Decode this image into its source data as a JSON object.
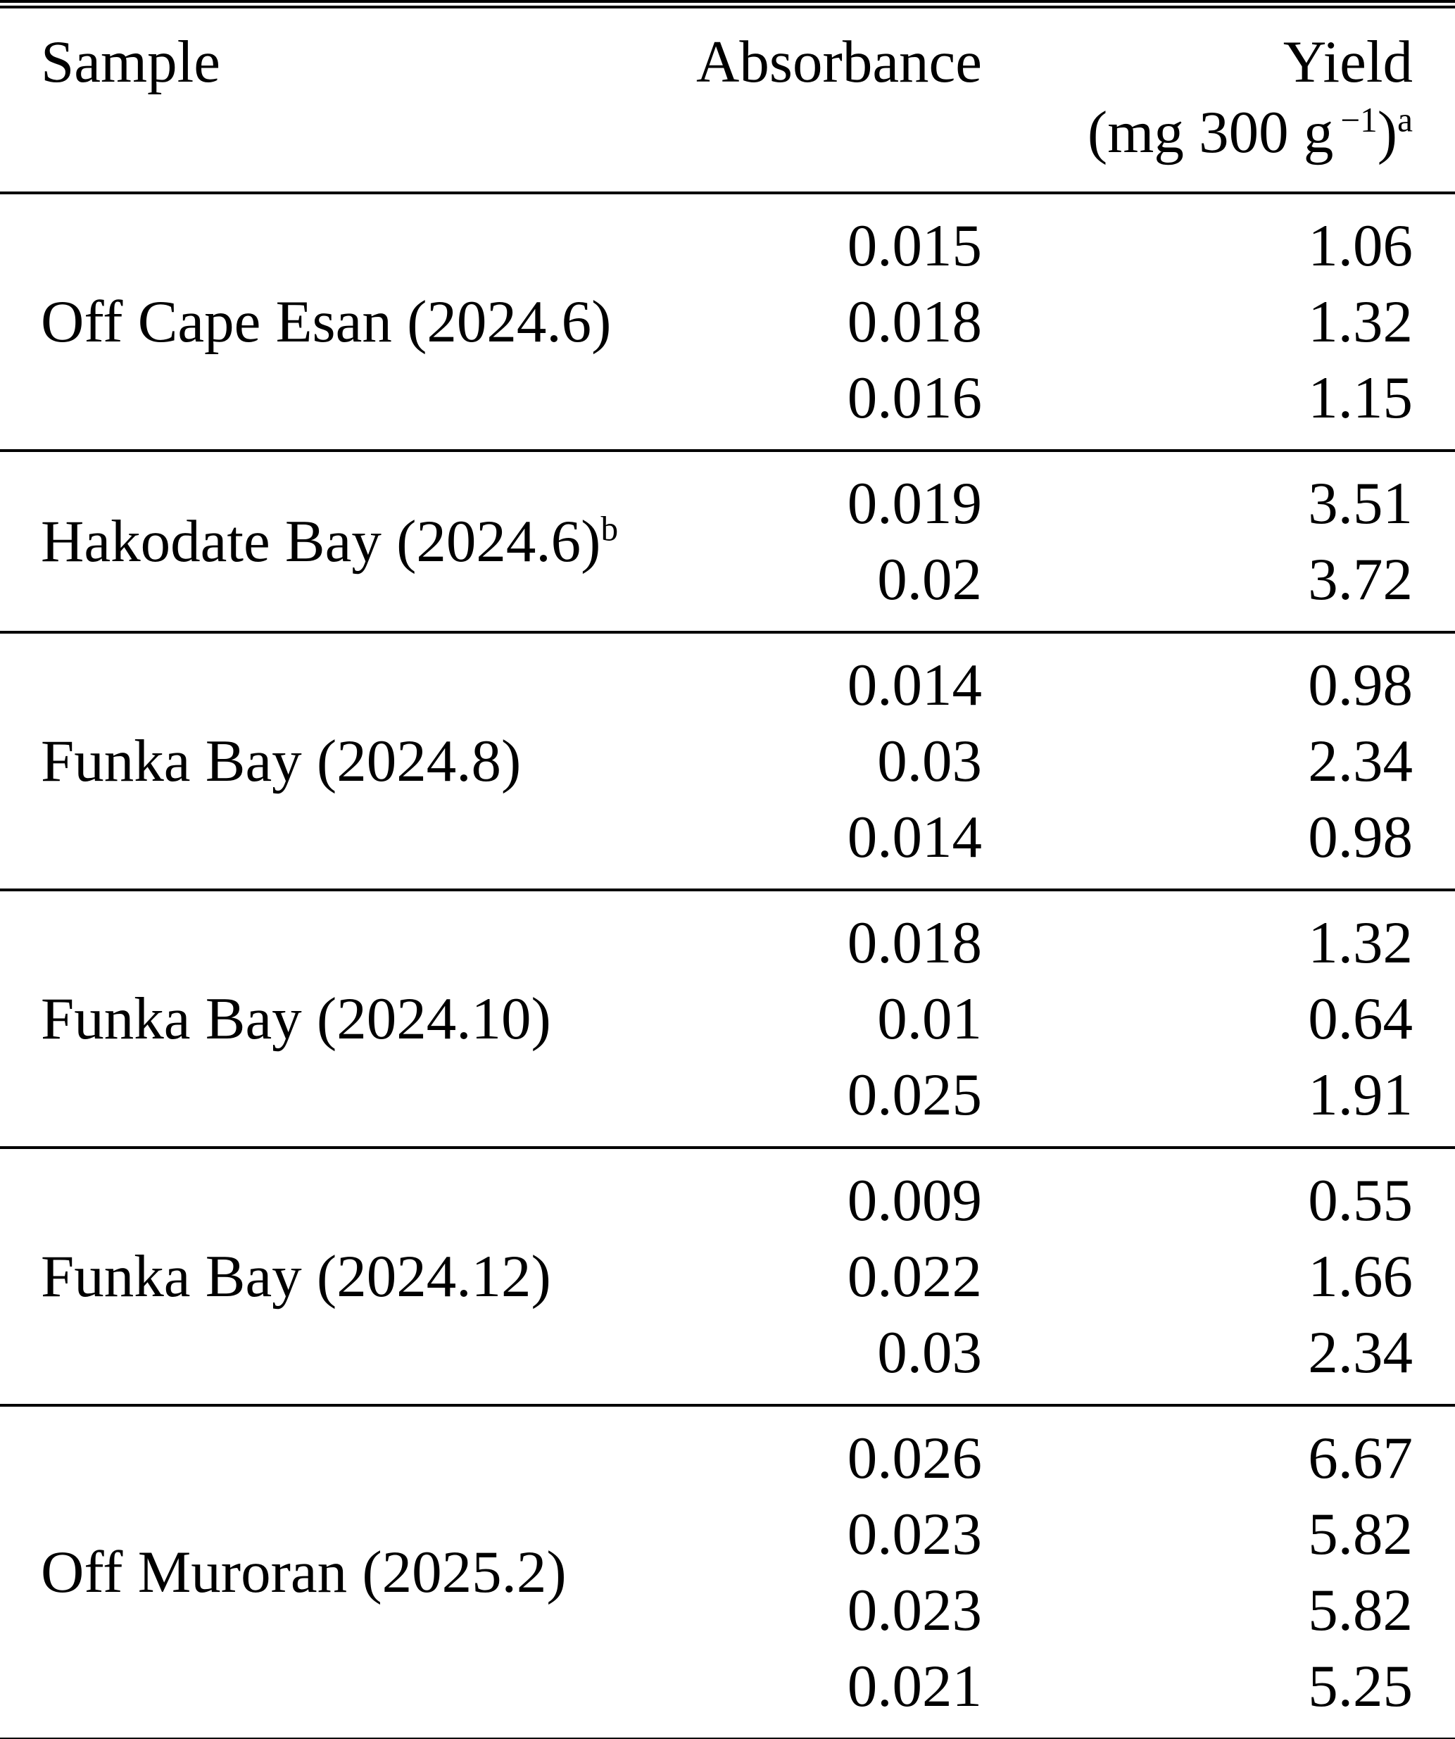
{
  "table": {
    "header": {
      "sample": "Sample",
      "absorbance": "Absorbance",
      "yield_line1": "Yield",
      "yield_unit_prefix": "(mg 300 g",
      "yield_unit_exponent": "−1",
      "yield_unit_close": ")",
      "yield_unit_footnote": "a"
    },
    "groups": [
      {
        "sample": "Off Cape Esan (2024.6)",
        "sample_footnote": "",
        "rows": [
          {
            "absorbance": "0.015",
            "yield": "1.06"
          },
          {
            "absorbance": "0.018",
            "yield": "1.32"
          },
          {
            "absorbance": "0.016",
            "yield": "1.15"
          }
        ]
      },
      {
        "sample": "Hakodate Bay (2024.6)",
        "sample_footnote": "b",
        "rows": [
          {
            "absorbance": "0.019",
            "yield": "3.51"
          },
          {
            "absorbance": "0.02",
            "yield": "3.72"
          }
        ]
      },
      {
        "sample": "Funka Bay (2024.8)",
        "sample_footnote": "",
        "rows": [
          {
            "absorbance": "0.014",
            "yield": "0.98"
          },
          {
            "absorbance": "0.03",
            "yield": "2.34"
          },
          {
            "absorbance": "0.014",
            "yield": "0.98"
          }
        ]
      },
      {
        "sample": "Funka Bay (2024.10)",
        "sample_footnote": "",
        "rows": [
          {
            "absorbance": "0.018",
            "yield": "1.32"
          },
          {
            "absorbance": "0.01",
            "yield": "0.64"
          },
          {
            "absorbance": "0.025",
            "yield": "1.91"
          }
        ]
      },
      {
        "sample": "Funka Bay (2024.12)",
        "sample_footnote": "",
        "rows": [
          {
            "absorbance": "0.009",
            "yield": "0.55"
          },
          {
            "absorbance": "0.022",
            "yield": "1.66"
          },
          {
            "absorbance": "0.03",
            "yield": "2.34"
          }
        ]
      },
      {
        "sample": "Off Muroran (2025.2)",
        "sample_footnote": "",
        "rows": [
          {
            "absorbance": "0.026",
            "yield": "6.67"
          },
          {
            "absorbance": "0.023",
            "yield": "5.82"
          },
          {
            "absorbance": "0.023",
            "yield": "5.82"
          },
          {
            "absorbance": "0.021",
            "yield": "5.25"
          }
        ]
      }
    ]
  }
}
